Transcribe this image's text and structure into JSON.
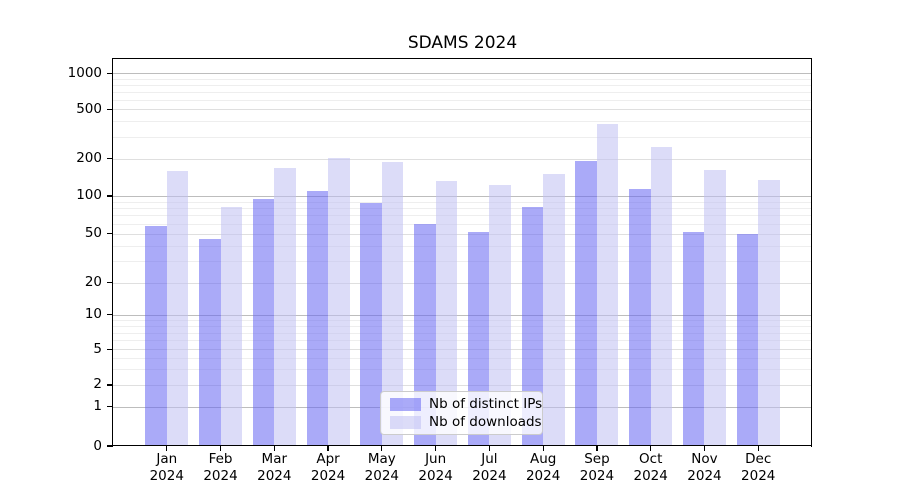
{
  "chart_data": {
    "type": "bar",
    "title": "SDAMS 2024",
    "xlabel": "",
    "ylabel": "",
    "background": "#ffffff",
    "grid": true,
    "yscale": "symlog-like",
    "yticks": [
      0,
      1,
      2,
      5,
      10,
      20,
      50,
      100,
      200,
      500,
      1000
    ],
    "ylim": [
      0,
      1340
    ],
    "categories": [
      "Jan 2024",
      "Feb 2024",
      "Mar 2024",
      "Apr 2024",
      "May 2024",
      "Jun 2024",
      "Jul 2024",
      "Aug 2024",
      "Sep 2024",
      "Oct 2024",
      "Nov 2024",
      "Dec 2024"
    ],
    "series": [
      {
        "name": "Nb of distinct IPs",
        "color": "#6464f2",
        "alpha": 0.55,
        "observed_color": "#aaaaf9",
        "values": [
          58,
          45,
          95,
          110,
          88,
          60,
          51,
          82,
          192,
          115,
          51,
          50
        ]
      },
      {
        "name": "Nb of downloads",
        "color": "#bfbff2",
        "alpha": 0.55,
        "observed_color": "#dcdcf9",
        "values": [
          160,
          82,
          170,
          205,
          190,
          132,
          123,
          150,
          380,
          250,
          162,
          136
        ]
      }
    ],
    "legend": {
      "position": "lower center",
      "items": [
        "Nb of distinct IPs",
        "Nb of downloads"
      ]
    }
  }
}
